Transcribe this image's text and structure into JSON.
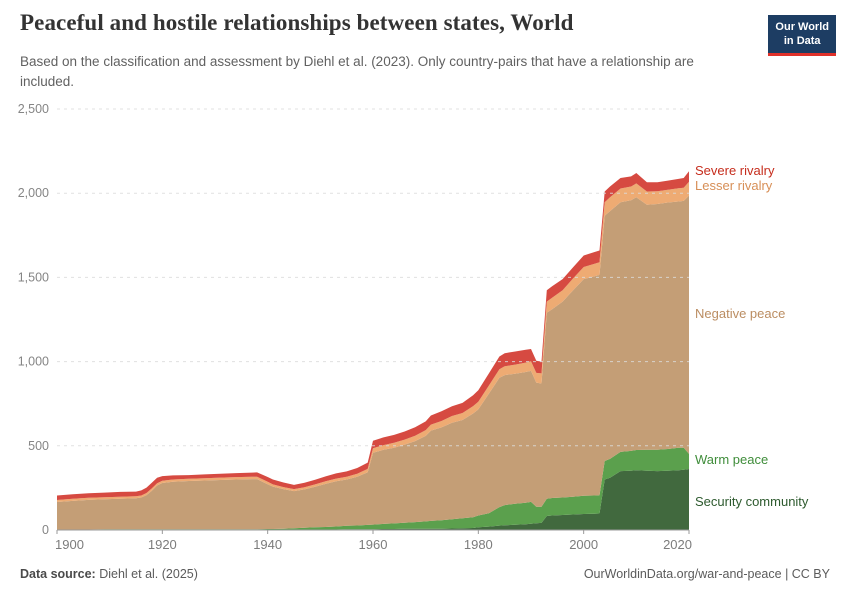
{
  "header": {
    "title": "Peaceful and hostile relationships between states, World",
    "subtitle": "Based on the classification and assessment by Diehl et al. (2023). Only country-pairs that have a relationship are included.",
    "logo": {
      "line1": "Our World",
      "line2": "in Data"
    }
  },
  "footer": {
    "source_label": "Data source:",
    "source_value": "Diehl et al. (2025)",
    "link": "OurWorldinData.org/war-and-peace | CC BY"
  },
  "colors": {
    "background": "#ffffff",
    "grid": "#dcdcdc",
    "axis": "#999999",
    "tick_text": "#858585",
    "title_text": "#333333",
    "subtitle_text": "#616161",
    "logo_bg": "#1d3d63",
    "logo_accent": "#e0312a"
  },
  "chart_data": {
    "type": "area",
    "stacked": true,
    "title": "Peaceful and hostile relationships between states, World",
    "xlabel": "",
    "ylabel": "",
    "x_range": [
      1900,
      2020
    ],
    "ylim": [
      0,
      2500
    ],
    "grid": "dashed horizontal",
    "legend_position": "right",
    "x_ticks": [
      {
        "v": 1900,
        "label": "1900"
      },
      {
        "v": 1920,
        "label": "1920"
      },
      {
        "v": 1940,
        "label": "1940"
      },
      {
        "v": 1960,
        "label": "1960"
      },
      {
        "v": 1980,
        "label": "1980"
      },
      {
        "v": 2000,
        "label": "2000"
      },
      {
        "v": 2020,
        "label": "2020"
      }
    ],
    "y_ticks": [
      {
        "v": 0,
        "label": "0"
      },
      {
        "v": 500,
        "label": "500"
      },
      {
        "v": 1000,
        "label": "1,000"
      },
      {
        "v": 1500,
        "label": "1,500"
      },
      {
        "v": 2000,
        "label": "2,000"
      },
      {
        "v": 2500,
        "label": "2,500"
      }
    ],
    "years": [
      1900,
      1903,
      1906,
      1909,
      1912,
      1915,
      1916,
      1917,
      1918,
      1919,
      1920,
      1922,
      1925,
      1928,
      1931,
      1934,
      1937,
      1938,
      1940,
      1941,
      1943,
      1945,
      1947,
      1949,
      1951,
      1953,
      1955,
      1957,
      1959,
      1960,
      1962,
      1964,
      1966,
      1968,
      1970,
      1971,
      1973,
      1975,
      1977,
      1979,
      1980,
      1982,
      1984,
      1985,
      1987,
      1989,
      1990,
      1991,
      1992,
      1993,
      1994,
      1996,
      1998,
      2000,
      2002,
      2003,
      2004,
      2005,
      2007,
      2009,
      2010,
      2012,
      2014,
      2016,
      2018,
      2019,
      2020
    ],
    "series": [
      {
        "key": "security-community",
        "label": "Security community",
        "color": "#41693e",
        "label_color": "#2d5a2e",
        "values": [
          0,
          0,
          0,
          0,
          0,
          0,
          0,
          0,
          0,
          0,
          0,
          0,
          0,
          0,
          0,
          0,
          0,
          0,
          0,
          0,
          0,
          0,
          0,
          1,
          2,
          3,
          4,
          4,
          5,
          5,
          6,
          6,
          7,
          7,
          8,
          8,
          8,
          9,
          10,
          12,
          16,
          20,
          26,
          28,
          31,
          34,
          37,
          40,
          42,
          83,
          86,
          89,
          92,
          95,
          97,
          98,
          300,
          310,
          350,
          352,
          355,
          352,
          350,
          352,
          355,
          358,
          362
        ]
      },
      {
        "key": "warm-peace",
        "label": "Warm peace",
        "color": "#5ba04d",
        "label_color": "#3f8d3a",
        "values": [
          3,
          3,
          3,
          4,
          4,
          4,
          4,
          4,
          4,
          5,
          5,
          5,
          5,
          5,
          5,
          5,
          5,
          5,
          6,
          6,
          7,
          10,
          13,
          15,
          16,
          18,
          21,
          23,
          25,
          27,
          30,
          33,
          36,
          40,
          43,
          46,
          50,
          55,
          60,
          64,
          70,
          80,
          110,
          120,
          125,
          128,
          130,
          98,
          96,
          102,
          104,
          104,
          106,
          108,
          108,
          108,
          110,
          112,
          114,
          118,
          120,
          124,
          127,
          129,
          134,
          130,
          90
        ]
      },
      {
        "key": "negative-peace",
        "label": "Negative peace",
        "color": "#c49e76",
        "label_color": "#bb8d62",
        "values": [
          163,
          170,
          176,
          179,
          182,
          184,
          189,
          203,
          229,
          259,
          274,
          282,
          286,
          289,
          292,
          295,
          297,
          297,
          266,
          252,
          236,
          221,
          228,
          241,
          256,
          269,
          275,
          289,
          313,
          427,
          440,
          450,
          464,
          481,
          508,
          536,
          551,
          573,
          583,
          616,
          630,
          710,
          768,
          772,
          772,
          776,
          778,
          737,
          732,
          1105,
          1121,
          1163,
          1226,
          1287,
          1301,
          1309,
          1456,
          1472,
          1482,
          1488,
          1501,
          1456,
          1459,
          1464,
          1462,
          1466,
          1534
        ]
      },
      {
        "key": "lesser-rivalry",
        "label": "Lesser rivalry",
        "color": "#eeab73",
        "label_color": "#d78f57",
        "values": [
          12,
          12,
          12,
          12,
          12,
          12,
          12,
          13,
          14,
          14,
          13,
          13,
          13,
          13,
          14,
          14,
          14,
          14,
          14,
          13,
          12,
          12,
          13,
          14,
          15,
          15,
          16,
          18,
          20,
          26,
          28,
          29,
          30,
          32,
          34,
          36,
          38,
          40,
          42,
          44,
          46,
          48,
          50,
          52,
          54,
          56,
          57,
          58,
          60,
          66,
          68,
          68,
          70,
          72,
          74,
          75,
          80,
          82,
          82,
          82,
          82,
          78,
          76,
          76,
          78,
          78,
          82
        ]
      },
      {
        "key": "severe-rivalry",
        "label": "Severe rivalry",
        "color": "#d64a41",
        "label_color": "#c62d1d",
        "values": [
          27,
          27,
          27,
          27,
          28,
          28,
          30,
          32,
          33,
          32,
          28,
          24,
          22,
          23,
          23,
          24,
          25,
          26,
          29,
          29,
          27,
          25,
          26,
          27,
          29,
          31,
          32,
          34,
          37,
          45,
          46,
          47,
          48,
          50,
          52,
          54,
          58,
          58,
          60,
          64,
          68,
          72,
          76,
          78,
          78,
          76,
          73,
          72,
          70,
          68,
          68,
          66,
          66,
          68,
          70,
          70,
          64,
          64,
          62,
          60,
          62,
          55,
          53,
          54,
          56,
          58,
          62
        ]
      }
    ]
  }
}
